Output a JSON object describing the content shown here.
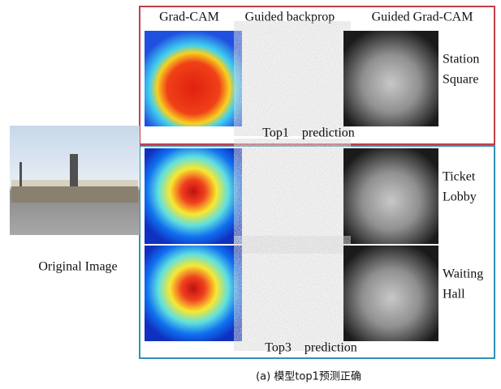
{
  "figure": {
    "columns": [
      "Grad-CAM",
      "Guided backprop",
      "Guided Grad-CAM"
    ],
    "original_label": "Original Image",
    "groups": [
      {
        "caption": "Top1    prediction",
        "rows": [
          {
            "label_lines": [
              "Station",
              "Square"
            ]
          }
        ]
      },
      {
        "caption": "Top3    prediction",
        "rows": [
          {
            "label_lines": [
              "Ticket",
              "Lobby"
            ]
          },
          {
            "label_lines": [
              "Waiting",
              "Hall"
            ]
          }
        ]
      }
    ],
    "caption": "(a) 模型top1预测正确"
  }
}
